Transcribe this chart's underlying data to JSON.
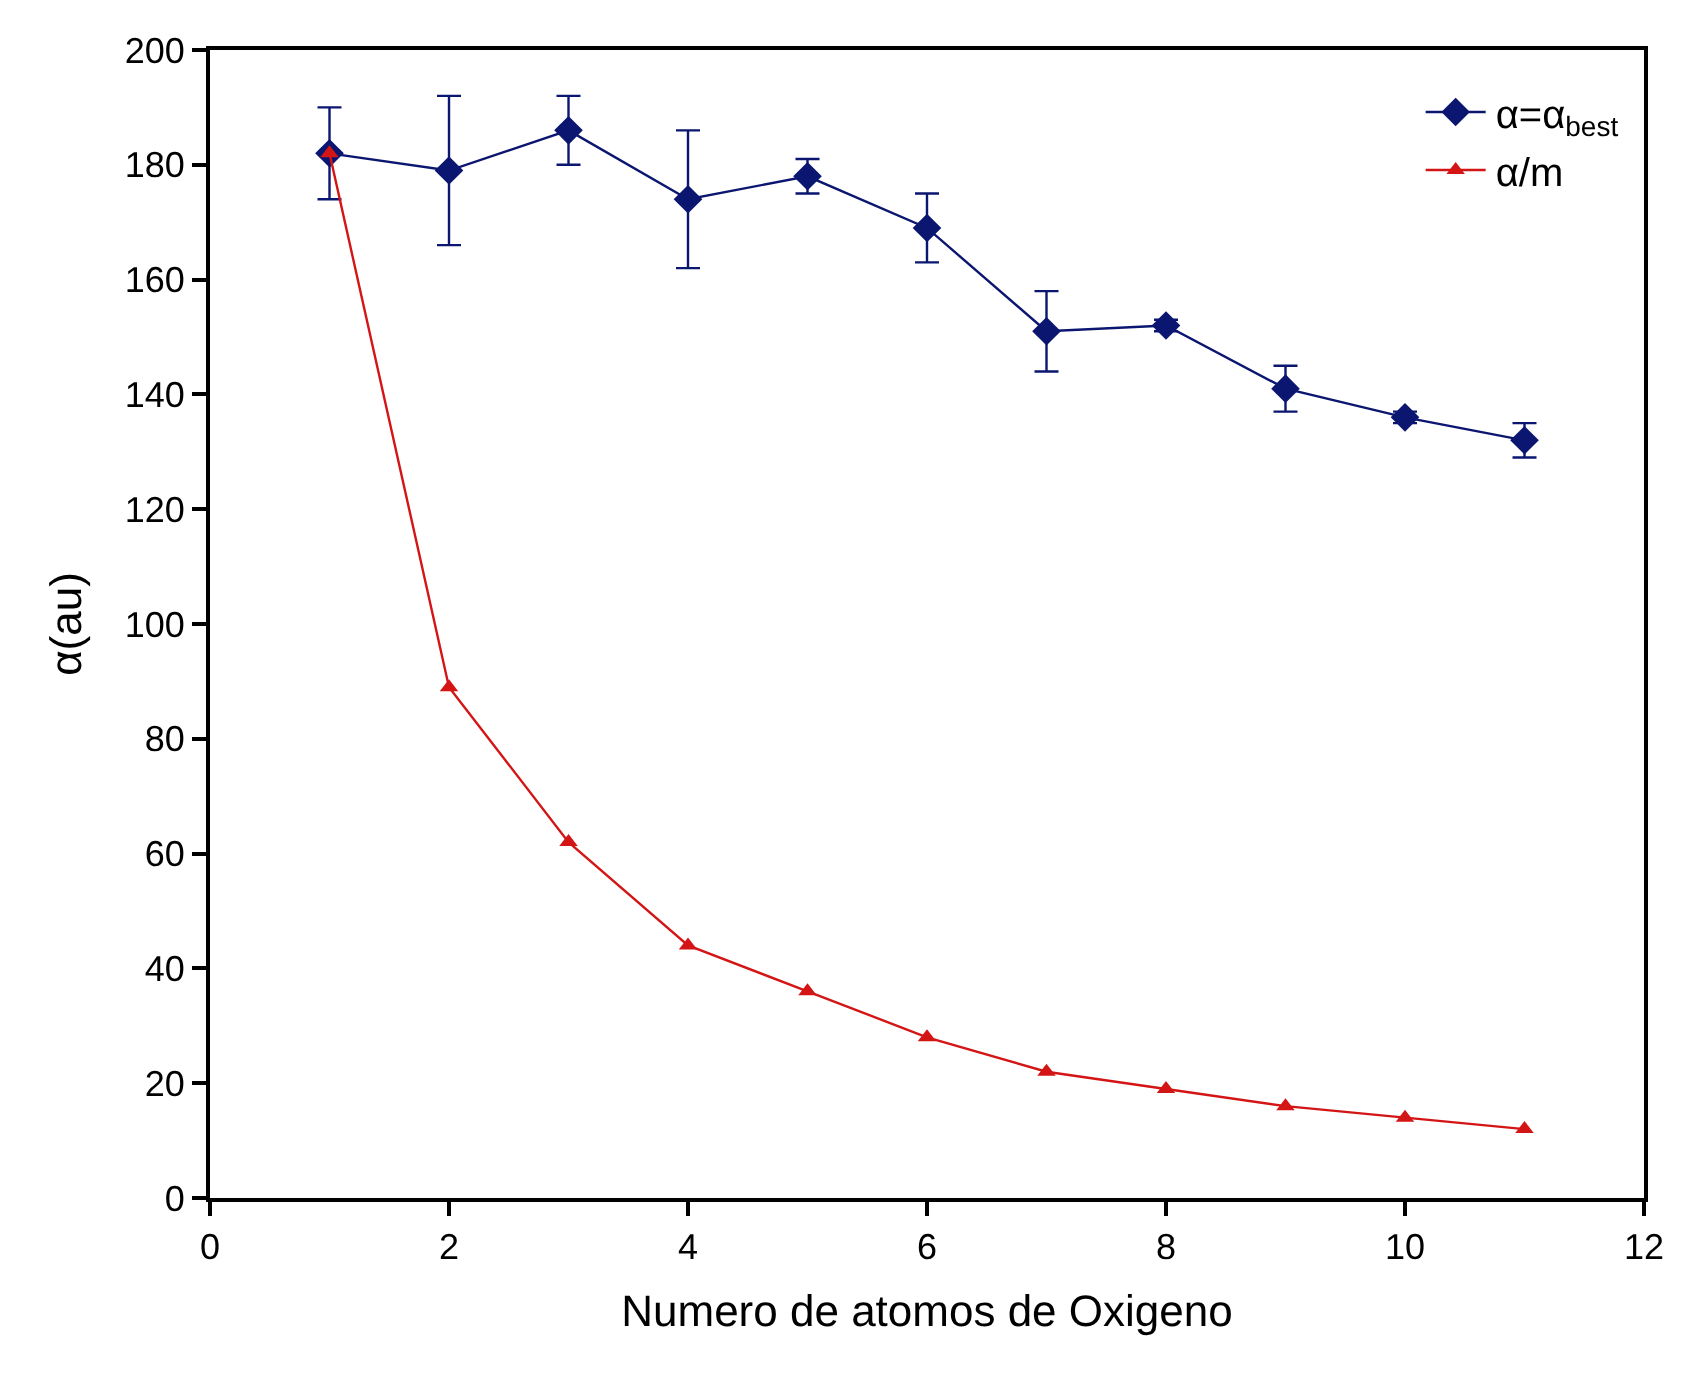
{
  "chart_data": {
    "type": "line",
    "xlabel": "Numero de atomos de Oxigeno",
    "ylabel": "α(au)",
    "x": [
      1,
      2,
      3,
      4,
      5,
      6,
      7,
      8,
      9,
      10,
      11
    ],
    "series": [
      {
        "name": "α=α$_{best}$",
        "color": "#0b1670",
        "marker": "diamond",
        "values": [
          182,
          179,
          186,
          174,
          178,
          169,
          151,
          152,
          141,
          136,
          132
        ],
        "errors": [
          [
            174,
            190
          ],
          [
            166,
            192
          ],
          [
            180,
            192
          ],
          [
            162,
            186
          ],
          [
            175,
            181
          ],
          [
            163,
            175
          ],
          [
            144,
            158
          ],
          [
            151,
            153
          ],
          [
            137,
            145
          ],
          [
            135,
            137
          ],
          [
            129,
            135
          ]
        ]
      },
      {
        "name": "α/m",
        "color": "#d41515",
        "marker": "triangle",
        "values": [
          182,
          89,
          62,
          44,
          36,
          28,
          22,
          19,
          16,
          14,
          12
        ]
      }
    ],
    "xlim": [
      0,
      12
    ],
    "xticks": [
      0,
      2,
      4,
      6,
      8,
      10,
      12
    ],
    "ylim": [
      0,
      200
    ],
    "yticks": [
      0,
      20,
      40,
      60,
      80,
      100,
      120,
      140,
      160,
      180,
      200
    ],
    "legend": "top right",
    "line_style": "solid"
  }
}
